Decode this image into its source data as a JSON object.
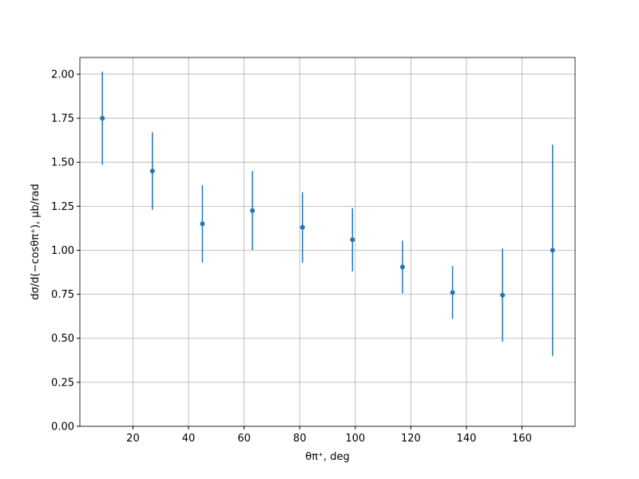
{
  "chart_data": {
    "type": "errorbar",
    "xlabel": "θπ⁺, deg",
    "ylabel": "dσ/d(−cosθπ⁺), μb/rad",
    "x": [
      9,
      27,
      45,
      63,
      81,
      99,
      117,
      135,
      153,
      171
    ],
    "series": [
      {
        "color": "#1f77b4",
        "values": [
          1.75,
          1.45,
          1.15,
          1.225,
          1.13,
          1.06,
          0.905,
          0.76,
          0.745,
          1.0
        ],
        "errors": [
          0.265,
          0.22,
          0.22,
          0.225,
          0.2,
          0.18,
          0.15,
          0.15,
          0.265,
          0.6
        ]
      }
    ],
    "xlim": [
      0.9,
      179.1
    ],
    "ylim": [
      0,
      2.095
    ],
    "xticks": [
      20,
      40,
      60,
      80,
      100,
      120,
      140,
      160
    ],
    "yticks": [
      {
        "value": 0,
        "label": "0.00"
      },
      {
        "value": 0.25,
        "label": "0.25"
      },
      {
        "value": 0.5,
        "label": "0.50"
      },
      {
        "value": 0.75,
        "label": "0.75"
      },
      {
        "value": 1,
        "label": "1.00"
      },
      {
        "value": 1.25,
        "label": "1.25"
      },
      {
        "value": 1.5,
        "label": "1.50"
      },
      {
        "value": 1.75,
        "label": "1.75"
      },
      {
        "value": 2,
        "label": "2.00"
      }
    ],
    "grid": true
  }
}
